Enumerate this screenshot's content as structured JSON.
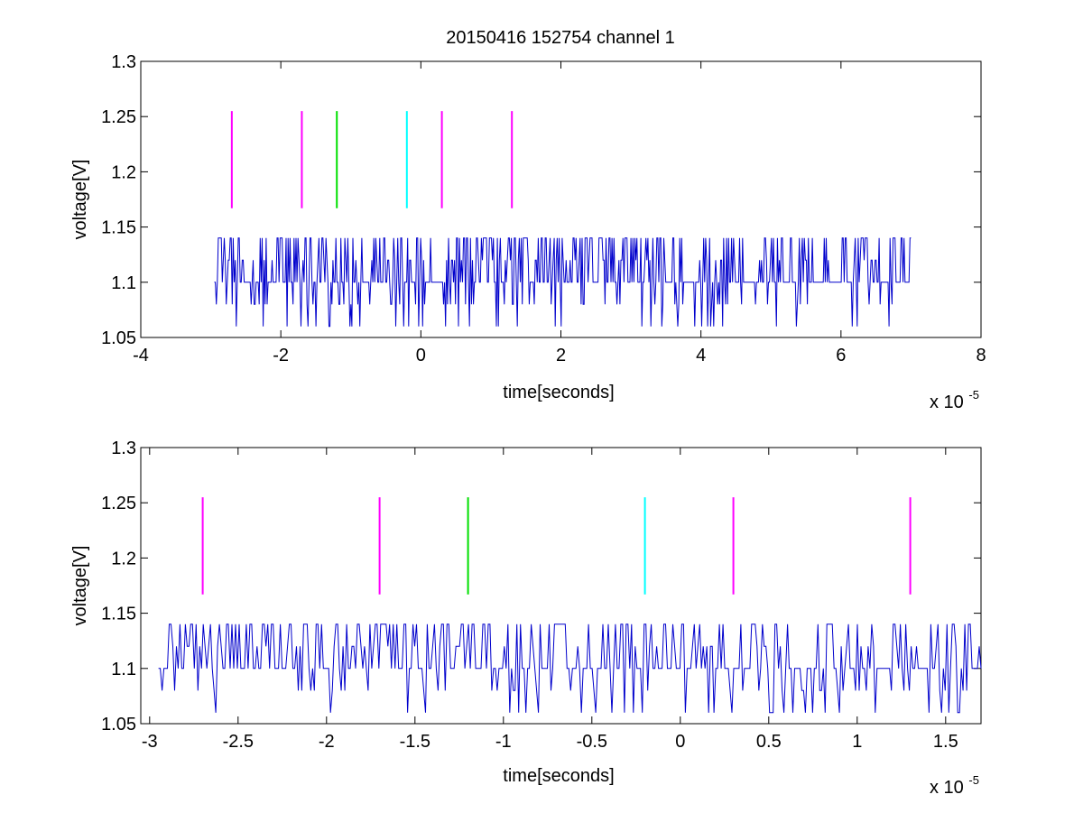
{
  "figure_title": "20150416 152754 channel 1",
  "colors": {
    "signal": "#0000cc",
    "magenta": "#ff00ff",
    "green": "#00e000",
    "cyan": "#00ffff",
    "axes": "#000000",
    "background": "#ffffff"
  },
  "chart_data": [
    {
      "type": "line",
      "title": "20150416 152754 channel 1",
      "xlabel": "time[seconds]",
      "ylabel": "voltage[V]",
      "x_multiplier_label": "x 10",
      "x_multiplier_exponent": "-5",
      "xlim": [
        -4,
        8
      ],
      "ylim": [
        1.05,
        1.3
      ],
      "xticks": [
        -4,
        -2,
        0,
        2,
        4,
        6,
        8
      ],
      "xtick_labels": [
        "-4",
        "-2",
        "0",
        "2",
        "4",
        "6",
        "8"
      ],
      "yticks": [
        1.05,
        1.1,
        1.15,
        1.2,
        1.25,
        1.3
      ],
      "ytick_labels": [
        "1.05",
        "1.1",
        "1.15",
        "1.2",
        "1.25",
        "1.3"
      ],
      "grid": false,
      "series": [
        {
          "color": "#0000cc",
          "x_range": [
            -2.95,
            7.0
          ],
          "levels": [
            1.06,
            1.08,
            1.1,
            1.12,
            1.14
          ],
          "baseline": 1.1,
          "points": 700,
          "seed": 1
        }
      ],
      "markers": [
        {
          "x": -2.7,
          "y0": 1.167,
          "y1": 1.255,
          "color": "#ff00ff"
        },
        {
          "x": -1.7,
          "y0": 1.167,
          "y1": 1.255,
          "color": "#ff00ff"
        },
        {
          "x": -1.2,
          "y0": 1.167,
          "y1": 1.255,
          "color": "#00e000"
        },
        {
          "x": -0.2,
          "y0": 1.167,
          "y1": 1.255,
          "color": "#00ffff"
        },
        {
          "x": 0.3,
          "y0": 1.167,
          "y1": 1.255,
          "color": "#ff00ff"
        },
        {
          "x": 1.3,
          "y0": 1.167,
          "y1": 1.255,
          "color": "#ff00ff"
        }
      ]
    },
    {
      "type": "line",
      "title": "",
      "xlabel": "time[seconds]",
      "ylabel": "voltage[V]",
      "x_multiplier_label": "x 10",
      "x_multiplier_exponent": "-5",
      "xlim": [
        -3.05,
        1.7
      ],
      "ylim": [
        1.05,
        1.3
      ],
      "xticks": [
        -3,
        -2.5,
        -2,
        -1.5,
        -1,
        -0.5,
        0,
        0.5,
        1,
        1.5
      ],
      "xtick_labels": [
        "-3",
        "-2.5",
        "-2",
        "-1.5",
        "-1",
        "-0.5",
        "0",
        "0.5",
        "1",
        "1.5"
      ],
      "yticks": [
        1.05,
        1.1,
        1.15,
        1.2,
        1.25,
        1.3
      ],
      "ytick_labels": [
        "1.05",
        "1.1",
        "1.15",
        "1.2",
        "1.25",
        "1.3"
      ],
      "grid": false,
      "series": [
        {
          "color": "#0000cc",
          "x_range": [
            -2.95,
            1.7
          ],
          "levels": [
            1.06,
            1.08,
            1.1,
            1.12,
            1.14
          ],
          "baseline": 1.1,
          "points": 460,
          "seed": 7
        }
      ],
      "markers": [
        {
          "x": -2.7,
          "y0": 1.167,
          "y1": 1.255,
          "color": "#ff00ff"
        },
        {
          "x": -1.7,
          "y0": 1.167,
          "y1": 1.255,
          "color": "#ff00ff"
        },
        {
          "x": -1.2,
          "y0": 1.167,
          "y1": 1.255,
          "color": "#00e000"
        },
        {
          "x": -0.2,
          "y0": 1.167,
          "y1": 1.255,
          "color": "#00ffff"
        },
        {
          "x": 0.3,
          "y0": 1.167,
          "y1": 1.255,
          "color": "#ff00ff"
        },
        {
          "x": 1.3,
          "y0": 1.167,
          "y1": 1.255,
          "color": "#ff00ff"
        }
      ]
    }
  ]
}
